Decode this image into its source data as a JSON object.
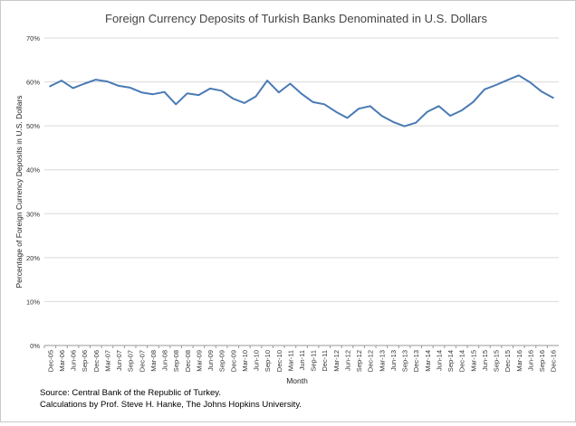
{
  "chart_data": {
    "type": "line",
    "title": "Foreign Currency Deposits of Turkish Banks Denominated in U.S. Dollars",
    "xlabel": "Month",
    "ylabel": "Percentage of Foreign Currency Deposits in U.S. Dollars",
    "ylim": [
      0,
      70
    ],
    "y_ticks": [
      "0%",
      "10%",
      "20%",
      "30%",
      "40%",
      "50%",
      "60%",
      "70%"
    ],
    "x_tick_labels": [
      "Dec-05",
      "Mar-06",
      "Jun-06",
      "Sep-06",
      "Dec-06",
      "Mar-07",
      "Jun-07",
      "Sep-07",
      "Dec-07",
      "Mar-08",
      "Jun-08",
      "Sep-08",
      "Dec-08",
      "Mar-09",
      "Jun-09",
      "Sep-09",
      "Dec-09",
      "Mar-10",
      "Jun-10",
      "Sep-10",
      "Dec-10",
      "Mar-11",
      "Jun-11",
      "Sep-11",
      "Dec-11",
      "Mar-12",
      "Jun-12",
      "Sep-12",
      "Dec-12",
      "Mar-13",
      "Jun-13",
      "Sep-13",
      "Dec-13",
      "Mar-14",
      "Jun-14",
      "Sep-14",
      "Dec-14",
      "Mar-15",
      "Jun-15",
      "Sep-15",
      "Dec-15",
      "Mar-16",
      "Jun-16",
      "Sep-16",
      "Dec-16"
    ],
    "grid": "horizontal",
    "line_color": "#4a7ab5",
    "series": [
      {
        "x": [
          "Dec-05",
          "Mar-06",
          "Jun-06",
          "Sep-06",
          "Dec-06",
          "Mar-07",
          "Jun-07",
          "Sep-07",
          "Dec-07",
          "Mar-08",
          "Jun-08",
          "Sep-08",
          "Dec-08",
          "Mar-09",
          "Jun-09",
          "Sep-09",
          "Dec-09",
          "Mar-10",
          "Jun-10",
          "Sep-10",
          "Dec-10",
          "Mar-11",
          "Jun-11",
          "Sep-11",
          "Dec-11",
          "Mar-12",
          "Jun-12",
          "Sep-12",
          "Dec-12",
          "Mar-13",
          "Jun-13",
          "Sep-13",
          "Dec-13",
          "Mar-14",
          "Jun-14",
          "Sep-14",
          "Dec-14",
          "Mar-15",
          "Jun-15",
          "Sep-15",
          "Dec-15",
          "Mar-16",
          "Jun-16",
          "Sep-16",
          "Dec-16"
        ],
        "values": [
          59.0,
          60.3,
          58.6,
          59.6,
          60.5,
          60.1,
          59.1,
          58.7,
          57.6,
          57.2,
          57.7,
          54.9,
          57.4,
          57.0,
          58.5,
          58.0,
          56.2,
          55.2,
          56.7,
          60.3,
          57.6,
          59.6,
          57.3,
          55.4,
          54.9,
          53.2,
          51.8,
          53.9,
          54.5,
          52.3,
          50.9,
          49.9,
          50.7,
          53.2,
          54.5,
          52.3,
          53.5,
          55.4,
          58.3,
          59.3,
          60.4,
          61.5,
          59.9,
          57.8,
          56.4
        ]
      }
    ]
  },
  "source": {
    "line1": "Source: Central Bank of the Republic of Turkey.",
    "line2": "Calculations by Prof. Steve H. Hanke, The Johns Hopkins University."
  }
}
